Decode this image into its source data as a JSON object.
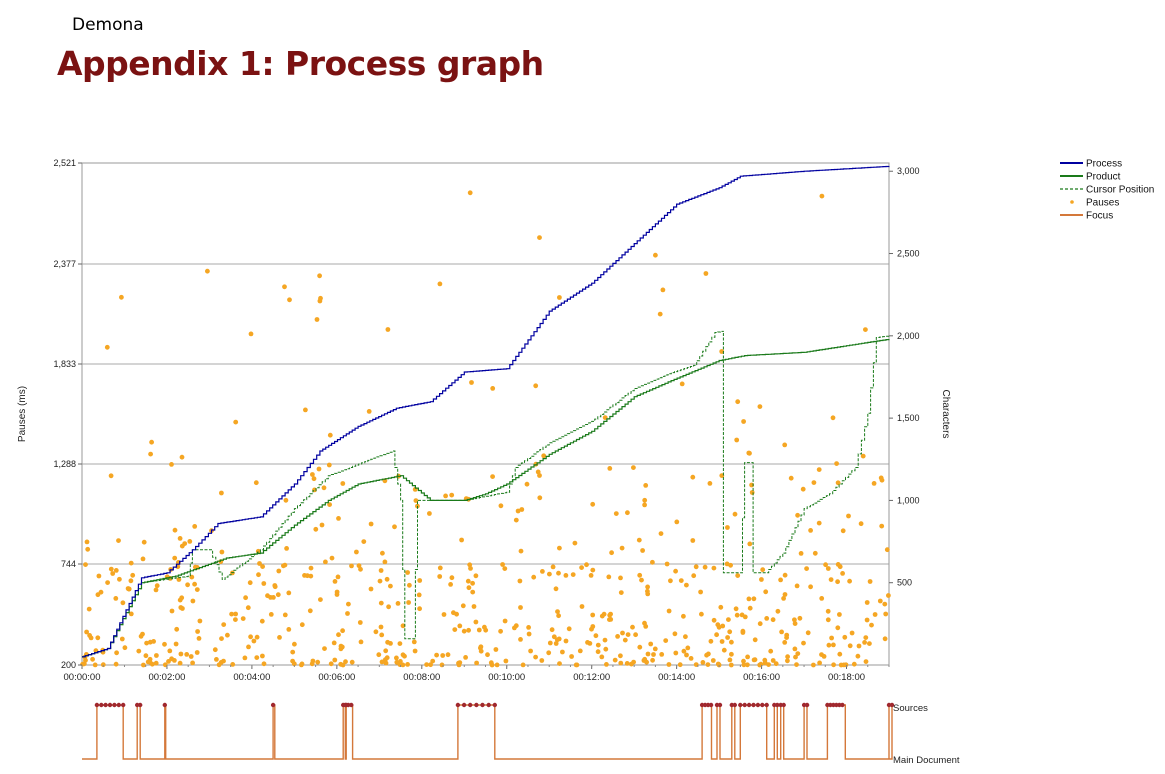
{
  "header": {
    "name": "Demona",
    "title": "Appendix 1: Process graph"
  },
  "colors": {
    "process": "#0000a0",
    "product": "#1a7a1a",
    "cursor": "#1a7a1a",
    "pauses": "#f5a623",
    "focus": "#d4783a",
    "focus_marker": "#a0282e",
    "grid": "#a8a8a8",
    "title": "#7b1212"
  },
  "chart_data": {
    "type": "line",
    "xlabel": "",
    "ylabel_left": "Pauses (ms)",
    "ylabel_right": "Characters",
    "x_ticks": [
      "00:00:00",
      "00:02:00",
      "00:04:00",
      "00:06:00",
      "00:08:00",
      "00:10:00",
      "00:12:00",
      "00:14:00",
      "00:16:00",
      "00:18:00"
    ],
    "xlim_minutes": [
      0,
      19
    ],
    "left_ticks": [
      200,
      744,
      1288,
      1833,
      2377,
      2521
    ],
    "left_tick_labels": [
      "200",
      "744",
      "1,288",
      "1,833",
      "2,377",
      "2,521"
    ],
    "right_ticks": [
      500,
      1000,
      1500,
      2000,
      2500,
      3000
    ],
    "right_tick_labels": [
      "500",
      "1,000",
      "1,500",
      "2,000",
      "2,500",
      "3,000"
    ],
    "ylim_right": [
      0,
      3050
    ],
    "grid": true,
    "legend_position": "top-right",
    "legend": [
      "Process",
      "Product",
      "Cursor Position",
      "Pauses",
      "Focus"
    ],
    "series": [
      {
        "name": "Process",
        "style": "line",
        "points": [
          [
            0,
            50
          ],
          [
            0.6,
            100
          ],
          [
            1.4,
            530
          ],
          [
            2.0,
            560
          ],
          [
            2.6,
            700
          ],
          [
            3.2,
            860
          ],
          [
            4.2,
            900
          ],
          [
            5.0,
            1100
          ],
          [
            5.6,
            1300
          ],
          [
            6.5,
            1450
          ],
          [
            7.4,
            1560
          ],
          [
            8.2,
            1600
          ],
          [
            9.0,
            1780
          ],
          [
            10.0,
            1800
          ],
          [
            11.0,
            2150
          ],
          [
            12.0,
            2320
          ],
          [
            13.0,
            2560
          ],
          [
            14.0,
            2800
          ],
          [
            15.0,
            2900
          ],
          [
            15.5,
            2970
          ],
          [
            17.0,
            3000
          ],
          [
            19.0,
            3030
          ]
        ]
      },
      {
        "name": "Product",
        "style": "line",
        "points": [
          [
            0,
            50
          ],
          [
            0.6,
            100
          ],
          [
            1.4,
            500
          ],
          [
            2.2,
            540
          ],
          [
            3.4,
            650
          ],
          [
            4.2,
            680
          ],
          [
            5.0,
            850
          ],
          [
            5.8,
            1000
          ],
          [
            6.5,
            1100
          ],
          [
            7.5,
            1150
          ],
          [
            8.2,
            1000
          ],
          [
            9.0,
            1000
          ],
          [
            9.5,
            1040
          ],
          [
            10.0,
            1100
          ],
          [
            11.0,
            1280
          ],
          [
            12.0,
            1420
          ],
          [
            13.0,
            1630
          ],
          [
            13.8,
            1720
          ],
          [
            15.0,
            1850
          ],
          [
            15.6,
            1880
          ],
          [
            17.0,
            1900
          ],
          [
            19.0,
            1980
          ]
        ]
      },
      {
        "name": "Cursor Position",
        "style": "dashed",
        "points": [
          [
            0,
            50
          ],
          [
            0.6,
            100
          ],
          [
            1.4,
            500
          ],
          [
            2.5,
            540
          ],
          [
            2.6,
            700
          ],
          [
            3.0,
            700
          ],
          [
            3.3,
            520
          ],
          [
            4.2,
            700
          ],
          [
            5.0,
            950
          ],
          [
            5.8,
            1150
          ],
          [
            7.3,
            1300
          ],
          [
            7.5,
            1000
          ],
          [
            7.6,
            160
          ],
          [
            7.8,
            160
          ],
          [
            7.9,
            1000
          ],
          [
            9.0,
            1000
          ],
          [
            10.0,
            1050
          ],
          [
            10.2,
            1200
          ],
          [
            11.0,
            1350
          ],
          [
            12.0,
            1480
          ],
          [
            13.0,
            1680
          ],
          [
            13.8,
            1770
          ],
          [
            14.4,
            1820
          ],
          [
            14.9,
            2020
          ],
          [
            15.1,
            2030
          ],
          [
            15.1,
            560
          ],
          [
            15.5,
            560
          ],
          [
            15.6,
            1230
          ],
          [
            15.8,
            1230
          ],
          [
            15.8,
            560
          ],
          [
            16.1,
            560
          ],
          [
            16.5,
            680
          ],
          [
            17.0,
            950
          ],
          [
            17.6,
            1040
          ],
          [
            18.2,
            1200
          ],
          [
            18.5,
            1530
          ],
          [
            18.7,
            1990
          ],
          [
            19.0,
            2000
          ]
        ]
      },
      {
        "name": "Pauses",
        "style": "scatter",
        "count": 650
      },
      {
        "name": "Focus",
        "style": "step",
        "levels": [
          "Sources",
          "Main Document"
        ],
        "sources_intervals": [
          [
            0.35,
            0.95
          ],
          [
            1.3,
            1.35
          ],
          [
            1.95,
            1.9
          ],
          [
            4.5,
            4.52
          ],
          [
            6.15,
            6.2
          ],
          [
            6.2,
            6.35
          ],
          [
            8.85,
            9.7
          ],
          [
            14.6,
            14.8
          ],
          [
            14.95,
            15.0
          ],
          [
            15.3,
            15.35
          ],
          [
            15.5,
            16.1
          ],
          [
            16.3,
            16.35
          ],
          [
            16.45,
            16.5
          ],
          [
            17.0,
            17.05
          ],
          [
            17.55,
            17.95
          ],
          [
            19.0,
            19.05
          ]
        ]
      }
    ],
    "focus_labels": [
      "Sources",
      "Main Document"
    ]
  }
}
